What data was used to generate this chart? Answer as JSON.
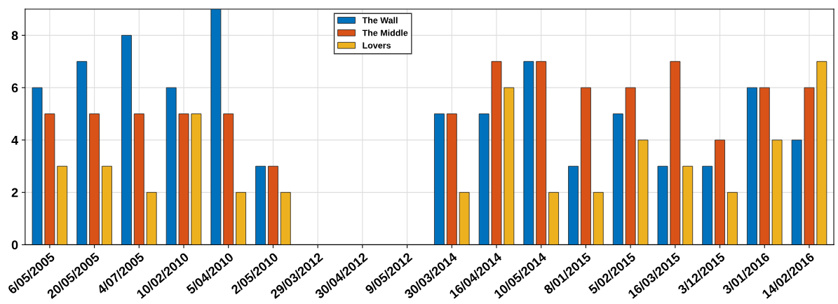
{
  "chart_data": {
    "type": "bar",
    "categories": [
      "6/05/2005",
      "20/05/2005",
      "4/07/2005",
      "10/02/2010",
      "5/04/2010",
      "2/05/2010",
      "29/03/2012",
      "30/04/2012",
      "9/05/2012",
      "30/03/2014",
      "16/04/2014",
      "10/05/2014",
      "8/01/2015",
      "5/02/2015",
      "16/03/2015",
      "3/12/2015",
      "3/01/2016",
      "14/02/2016"
    ],
    "series": [
      {
        "name": "The Wall",
        "color": "#0072bd",
        "values": [
          6,
          7,
          8,
          6,
          9,
          3,
          0,
          0,
          0,
          5,
          5,
          7,
          3,
          5,
          3,
          3,
          6,
          4
        ]
      },
      {
        "name": "The Middle",
        "color": "#d95319",
        "values": [
          5,
          5,
          5,
          5,
          5,
          3,
          0,
          0,
          0,
          5,
          7,
          7,
          6,
          6,
          7,
          4,
          6,
          6
        ]
      },
      {
        "name": "Lovers",
        "color": "#edb120",
        "values": [
          3,
          3,
          2,
          5,
          2,
          2,
          0,
          0,
          0,
          2,
          6,
          2,
          2,
          4,
          3,
          2,
          4,
          7
        ]
      }
    ],
    "ylim": [
      0,
      9
    ],
    "yticks": [
      0,
      2,
      4,
      6,
      8
    ],
    "grid": true,
    "legend": "top"
  }
}
